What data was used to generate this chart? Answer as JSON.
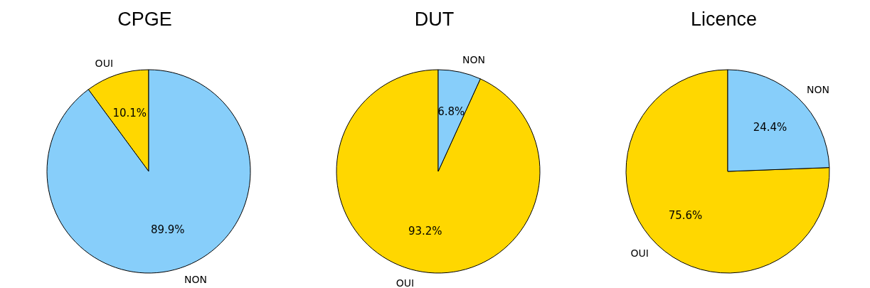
{
  "chart_data": [
    {
      "type": "pie",
      "title": "CPGE",
      "categories": [
        "OUI",
        "NON"
      ],
      "values": [
        10.1,
        89.9
      ],
      "value_labels": [
        "10.1%",
        "89.9%"
      ],
      "colors": [
        "#ffd700",
        "#87cefa"
      ]
    },
    {
      "type": "pie",
      "title": "DUT",
      "categories": [
        "OUI",
        "NON"
      ],
      "values": [
        93.2,
        6.8
      ],
      "value_labels": [
        "93.2%",
        "6.8%"
      ],
      "colors": [
        "#ffd700",
        "#87cefa"
      ]
    },
    {
      "type": "pie",
      "title": "Licence",
      "categories": [
        "OUI",
        "NON"
      ],
      "values": [
        75.6,
        24.4
      ],
      "value_labels": [
        "75.6%",
        "24.4%"
      ],
      "colors": [
        "#ffd700",
        "#87cefa"
      ]
    }
  ]
}
